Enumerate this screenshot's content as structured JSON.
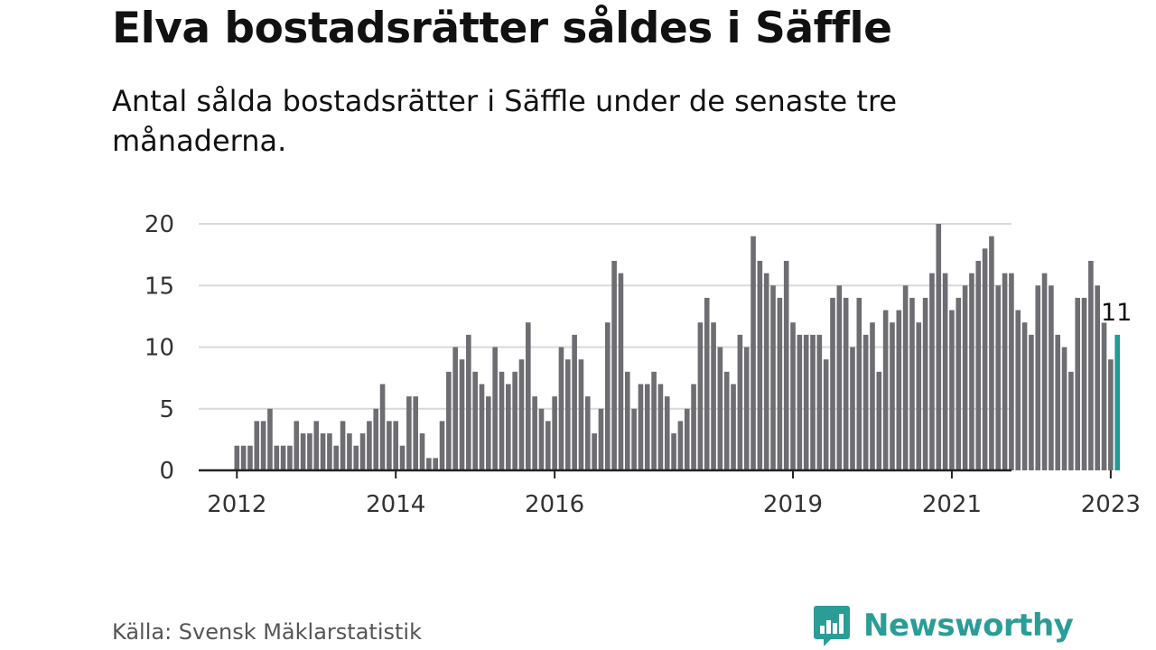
{
  "title": "Elva bostadsrätter såldes i Säffle",
  "subtitle": "Antal sålda bostadsrätter i Säffle under de senaste tre månaderna.",
  "source": "Källa: Svensk Mäklarstatistik",
  "brand": {
    "name": "Newsworthy",
    "icon": "bar-chart-icon",
    "color": "#2a9d96"
  },
  "colors": {
    "bar": "#6d6d72",
    "highlight": "#1f9c98",
    "grid": "#d9d9d9",
    "axis": "#222222"
  },
  "chart_data": {
    "type": "bar",
    "title": "Elva bostadsrätter såldes i Säffle",
    "subtitle": "Antal sålda bostadsrätter i Säffle under de senaste tre månaderna.",
    "xlabel": "",
    "ylabel": "",
    "ylim": [
      0,
      20
    ],
    "yticks": [
      0,
      5,
      10,
      15,
      20
    ],
    "grid": true,
    "x_start": "2012-01",
    "x_end": "2023-02",
    "xticks": [
      "2012",
      "2014",
      "2016",
      "2019",
      "2021",
      "2023"
    ],
    "highlight_label": "11",
    "values": [
      2,
      2,
      2,
      4,
      4,
      5,
      2,
      2,
      2,
      4,
      3,
      3,
      4,
      3,
      3,
      2,
      4,
      3,
      2,
      3,
      4,
      5,
      7,
      4,
      4,
      2,
      6,
      6,
      3,
      1,
      1,
      4,
      8,
      10,
      9,
      11,
      8,
      7,
      6,
      10,
      8,
      7,
      8,
      9,
      12,
      6,
      5,
      4,
      6,
      10,
      9,
      11,
      9,
      6,
      3,
      5,
      12,
      17,
      16,
      8,
      5,
      7,
      7,
      8,
      7,
      6,
      3,
      4,
      5,
      7,
      12,
      14,
      12,
      10,
      8,
      7,
      11,
      10,
      19,
      17,
      16,
      15,
      14,
      17,
      12,
      11,
      11,
      11,
      11,
      9,
      14,
      15,
      14,
      10,
      14,
      11,
      12,
      8,
      13,
      12,
      13,
      15,
      14,
      12,
      14,
      16,
      20,
      16,
      13,
      14,
      15,
      16,
      17,
      18,
      19,
      15,
      16,
      16,
      13,
      12,
      11,
      15,
      16,
      15,
      11,
      10,
      8,
      14,
      14,
      17,
      15,
      12,
      9,
      11
    ]
  }
}
